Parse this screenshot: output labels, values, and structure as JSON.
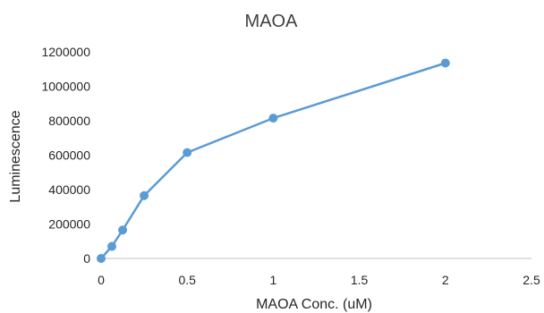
{
  "chart_data": {
    "type": "scatter",
    "title": "MAOA",
    "xlabel": "MAOA Conc. (uM)",
    "ylabel": "Luminescence",
    "xlim": [
      0,
      2.5
    ],
    "ylim": [
      0,
      1200000
    ],
    "x_ticks": [
      "0",
      "0.5",
      "1",
      "1.5",
      "2",
      "2.5"
    ],
    "y_ticks": [
      "0",
      "200000",
      "400000",
      "600000",
      "800000",
      "1000000",
      "1200000"
    ],
    "grid": false,
    "legend": "none",
    "series": [
      {
        "color": "#5b9bd5",
        "marker": "circle",
        "line": "straight",
        "points": [
          {
            "x": 0,
            "y": 0
          },
          {
            "x": 0.0625,
            "y": 70000
          },
          {
            "x": 0.125,
            "y": 165000
          },
          {
            "x": 0.25,
            "y": 365000
          },
          {
            "x": 0.5,
            "y": 615000
          },
          {
            "x": 1,
            "y": 815000
          },
          {
            "x": 2,
            "y": 1135000
          }
        ]
      }
    ]
  }
}
